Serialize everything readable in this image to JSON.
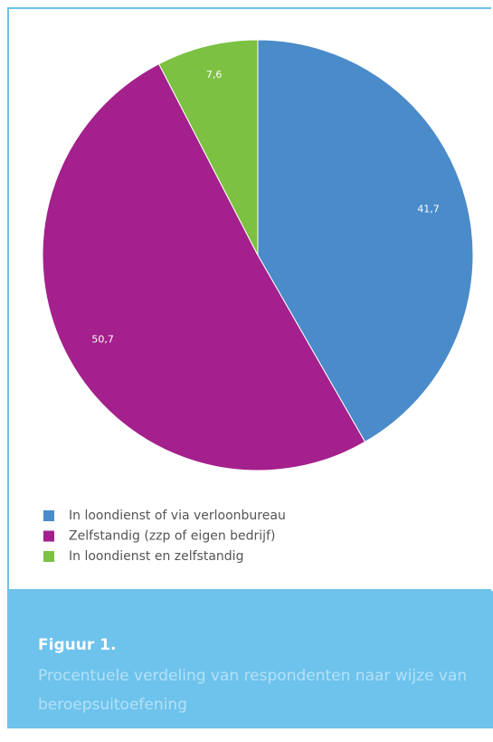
{
  "chart_data": {
    "type": "pie",
    "title": "Figuur 1.",
    "subtitle": "Procentuele verdeling van respondenten naar wijze van beroepsuitoefening",
    "categories": [
      "In loondienst of via verloonbureau",
      "Zelfstandig (zzp of eigen bedrijf)",
      "In loondienst en zelfstandig"
    ],
    "values": [
      41.7,
      50.7,
      7.6
    ],
    "value_labels": [
      "41,7",
      "50,7",
      "7,6"
    ],
    "colors": [
      "#4a8bc9",
      "#a4208c",
      "#7cc142"
    ],
    "legend": "bottom-left"
  }
}
